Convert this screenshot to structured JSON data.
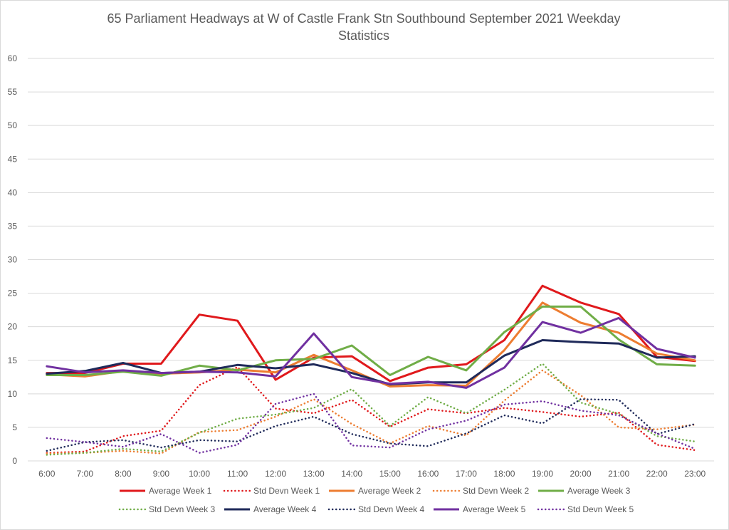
{
  "chart_data": {
    "type": "line",
    "title_line1": "65 Parliament Headways at W of Castle Frank Stn Southbound September 2021 Weekday",
    "title_line2": "Statistics",
    "xlabel": "",
    "ylabel": "",
    "ylim": [
      0,
      60
    ],
    "yticks": [
      "0",
      "5",
      "10",
      "15",
      "20",
      "25",
      "30",
      "35",
      "40",
      "45",
      "50",
      "55",
      "60"
    ],
    "categories": [
      "6:00",
      "7:00",
      "8:00",
      "9:00",
      "10:00",
      "11:00",
      "12:00",
      "13:00",
      "14:00",
      "15:00",
      "16:00",
      "17:00",
      "18:00",
      "19:00",
      "20:00",
      "21:00",
      "22:00",
      "23:00"
    ],
    "grid": true,
    "legend_position": "bottom",
    "series": [
      {
        "name": "Average Week 1",
        "color": "#e0191c",
        "style": "solid",
        "values": [
          13.1,
          13.1,
          14.5,
          14.5,
          21.8,
          20.9,
          12.1,
          15.4,
          15.6,
          11.9,
          13.9,
          14.4,
          18.0,
          26.1,
          23.6,
          21.9,
          15.5,
          14.9
        ]
      },
      {
        "name": "Std Devn Week 1",
        "color": "#e0191c",
        "style": "dotted",
        "values": [
          1.2,
          1.4,
          3.7,
          4.5,
          11.3,
          14.0,
          7.8,
          7.1,
          9.1,
          5.1,
          7.7,
          7.1,
          7.9,
          7.3,
          6.6,
          7.2,
          2.4,
          1.6
        ]
      },
      {
        "name": "Average Week 2",
        "color": "#ed7d31",
        "style": "solid",
        "values": [
          12.9,
          12.6,
          13.4,
          13.0,
          13.2,
          13.6,
          13.2,
          15.8,
          13.5,
          11.1,
          11.3,
          11.2,
          16.5,
          23.6,
          20.6,
          19.1,
          16.0,
          15.0
        ]
      },
      {
        "name": "Std Devn Week 2",
        "color": "#ed7d31",
        "style": "dotted",
        "values": [
          1.1,
          1.2,
          1.5,
          1.1,
          4.3,
          4.6,
          6.6,
          9.2,
          5.5,
          2.6,
          5.2,
          3.8,
          9.0,
          13.5,
          9.8,
          5.0,
          4.7,
          5.4
        ]
      },
      {
        "name": "Average Week 3",
        "color": "#70ad47",
        "style": "solid",
        "values": [
          12.8,
          12.8,
          13.3,
          12.7,
          14.2,
          13.5,
          15.0,
          15.2,
          17.2,
          12.8,
          15.5,
          13.5,
          19.2,
          23.0,
          23.0,
          18.1,
          14.4,
          14.2
        ]
      },
      {
        "name": "Std Devn Week 3",
        "color": "#70ad47",
        "style": "dotted",
        "values": [
          0.9,
          1.2,
          1.8,
          1.4,
          4.2,
          6.3,
          6.9,
          7.9,
          10.7,
          5.2,
          9.5,
          7.1,
          10.6,
          14.5,
          8.7,
          7.0,
          3.7,
          2.9
        ]
      },
      {
        "name": "Average Week 4",
        "color": "#1f2a5a",
        "style": "solid",
        "values": [
          13.0,
          13.4,
          14.6,
          13.1,
          13.3,
          14.3,
          13.8,
          14.4,
          13.1,
          11.4,
          11.7,
          11.7,
          15.7,
          18.0,
          17.7,
          17.5,
          15.4,
          15.6
        ]
      },
      {
        "name": "Std Devn Week 4",
        "color": "#1f2a5a",
        "style": "dotted",
        "values": [
          1.5,
          2.8,
          3.1,
          2.0,
          3.1,
          2.9,
          5.2,
          6.6,
          4.0,
          2.6,
          2.2,
          4.1,
          6.8,
          5.6,
          9.2,
          9.1,
          4.0,
          5.5
        ]
      },
      {
        "name": "Average Week 5",
        "color": "#7030a0",
        "style": "solid",
        "values": [
          14.1,
          13.2,
          13.5,
          13.1,
          13.3,
          13.2,
          12.6,
          19.0,
          12.5,
          11.5,
          11.8,
          10.9,
          13.9,
          20.7,
          19.1,
          21.3,
          16.7,
          15.4
        ]
      },
      {
        "name": "Std Devn Week 5",
        "color": "#7030a0",
        "style": "dotted",
        "values": [
          3.4,
          2.8,
          2.1,
          4.0,
          1.2,
          2.4,
          8.5,
          10.0,
          2.3,
          2.0,
          4.7,
          6.0,
          8.4,
          8.9,
          7.5,
          6.8,
          4.1,
          1.8
        ]
      }
    ]
  }
}
